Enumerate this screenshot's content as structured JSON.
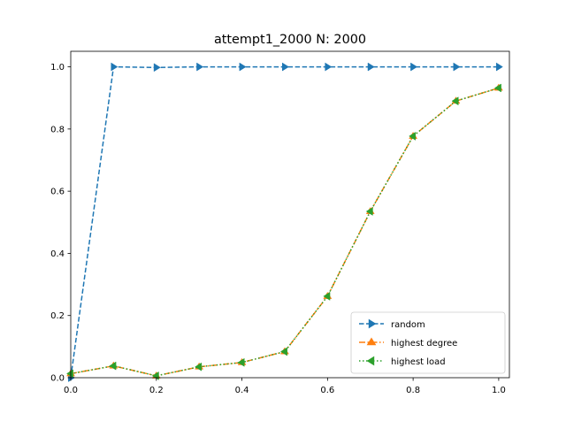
{
  "chart_data": {
    "type": "line",
    "title": "attempt1_2000 N: 2000",
    "xlabel": "",
    "ylabel": "",
    "xlim": [
      0,
      1.025
    ],
    "ylim": [
      0,
      1.05
    ],
    "xticks": [
      0.0,
      0.2,
      0.4,
      0.6,
      0.8,
      1.0
    ],
    "xtick_labels": [
      "0.0",
      "0.2",
      "0.4",
      "0.6",
      "0.8",
      "1.0"
    ],
    "yticks": [
      0.0,
      0.2,
      0.4,
      0.6,
      0.8,
      1.0
    ],
    "ytick_labels": [
      "0.0",
      "0.2",
      "0.4",
      "0.6",
      "0.8",
      "1.0"
    ],
    "grid": false,
    "legend_position": "lower-right",
    "x": [
      0.0,
      0.1,
      0.2,
      0.3,
      0.4,
      0.5,
      0.6,
      0.7,
      0.8,
      0.9,
      1.0
    ],
    "series": [
      {
        "name": "random",
        "color": "#1f77b4",
        "marker": "triangle-right",
        "linestyle": "dashed",
        "values": [
          0.0,
          1.0,
          0.998,
          1.0,
          1.0,
          1.0,
          1.0,
          1.0,
          1.0,
          1.0,
          1.0
        ]
      },
      {
        "name": "highest degree",
        "color": "#ff7f0e",
        "marker": "triangle-up",
        "linestyle": "dashdot",
        "values": [
          0.013,
          0.038,
          0.006,
          0.035,
          0.049,
          0.084,
          0.262,
          0.535,
          0.777,
          0.89,
          0.932
        ]
      },
      {
        "name": "highest load",
        "color": "#2ca02c",
        "marker": "triangle-left",
        "linestyle": "dotted",
        "values": [
          0.013,
          0.038,
          0.006,
          0.035,
          0.049,
          0.084,
          0.262,
          0.535,
          0.777,
          0.89,
          0.932
        ]
      }
    ]
  }
}
